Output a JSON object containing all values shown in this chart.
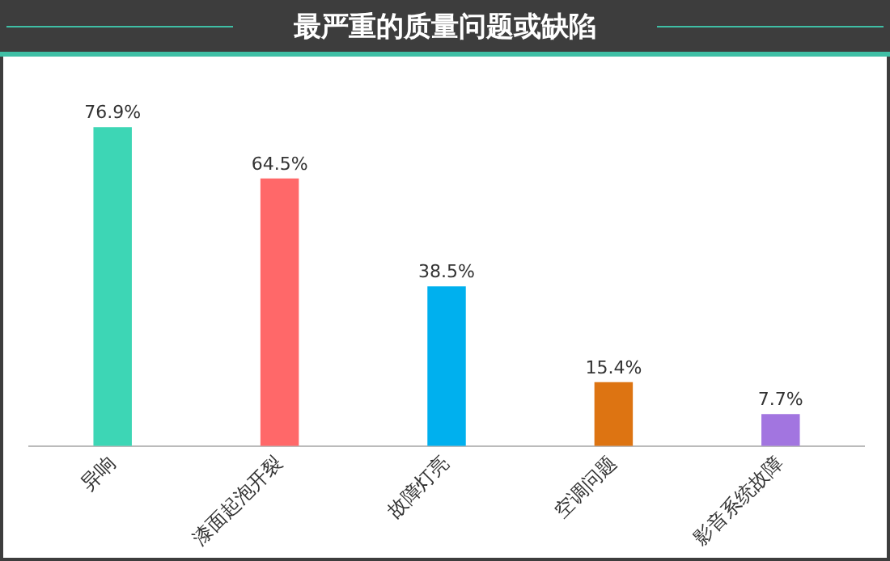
{
  "chart_data": {
    "type": "bar",
    "title": "最严重的质量问题或缺陷",
    "categories": [
      "异响",
      "漆面起泡开裂",
      "故障灯亮",
      "空调问题",
      "影音系统故障"
    ],
    "values": [
      76.9,
      64.5,
      38.5,
      15.4,
      7.7
    ],
    "colors": [
      "#3dd6b5",
      "#ff6869",
      "#00b0ee",
      "#dd7412",
      "#a275e0"
    ],
    "value_labels": [
      "76.9%",
      "64.5%",
      "38.5%",
      "15.4%",
      "7.7%"
    ],
    "tick_labels": "x",
    "grid": false,
    "legend": false
  }
}
